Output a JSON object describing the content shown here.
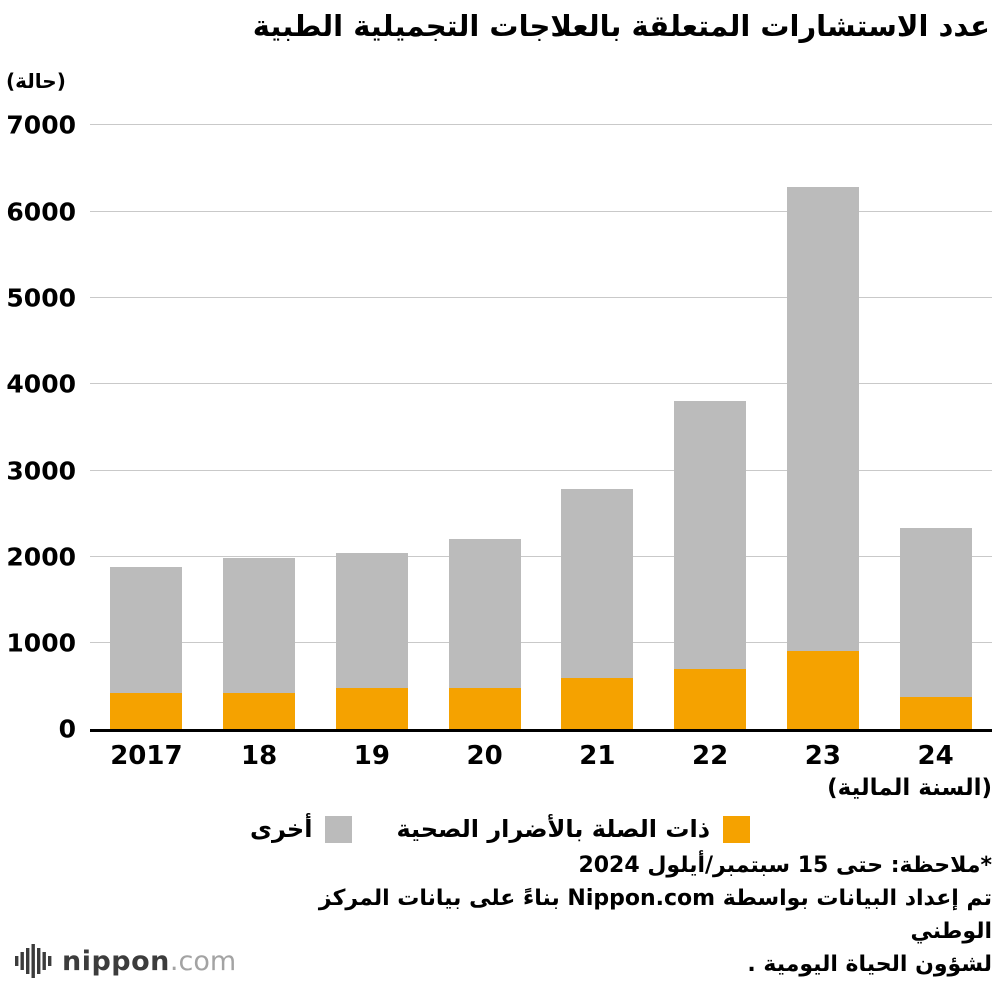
{
  "title": "عدد الاستشارات المتعلقة بالعلاجات التجميلية الطبية",
  "unit_label": "(حالة)",
  "x_axis_label": "(السنة المالية)",
  "legend": {
    "orange_label": "ذات الصلة بالأضرار الصحية",
    "gray_label": "أخرى"
  },
  "notes": [
    "*ملاحظة: حتى 15 سبتمبر/أيلول 2024",
    "تم إعداد البيانات بواسطة Nippon.com بناءً على بيانات المركز الوطني",
    "لشؤون الحياة اليومية ."
  ],
  "logo": {
    "name": "nippon",
    "suffix": ".com"
  },
  "colors": {
    "orange": "#F5A200",
    "gray": "#BBBBBB",
    "blue": "#0068B7",
    "gridline": "#C9C9C9"
  },
  "chart_data": {
    "type": "bar",
    "stacked": true,
    "title": "عدد الاستشارات المتعلقة بالعلاجات التجميلية الطبية",
    "categories": [
      "2017",
      "18",
      "19",
      "20",
      "21",
      "22",
      "23",
      "24"
    ],
    "series": [
      {
        "name": "ذات الصلة بالأضرار الصحية",
        "color": "#F5A200",
        "values": [
          420,
          420,
          480,
          480,
          600,
          700,
          910,
          380
        ]
      },
      {
        "name": "أخرى",
        "color": "#BBBBBB",
        "values": [
          1460,
          1570,
          1560,
          1730,
          2180,
          3100,
          5370,
          1950
        ]
      }
    ],
    "totals": [
      1880,
      1990,
      2040,
      2210,
      2780,
      3800,
      6280,
      2330
    ],
    "ylabel": "(حالة)",
    "xlabel": "(السنة المالية)",
    "ylim": [
      0,
      7000
    ],
    "yticks": [
      0,
      1000,
      2000,
      3000,
      4000,
      5000,
      6000,
      7000
    ],
    "grid": true,
    "legend_position": "bottom"
  }
}
